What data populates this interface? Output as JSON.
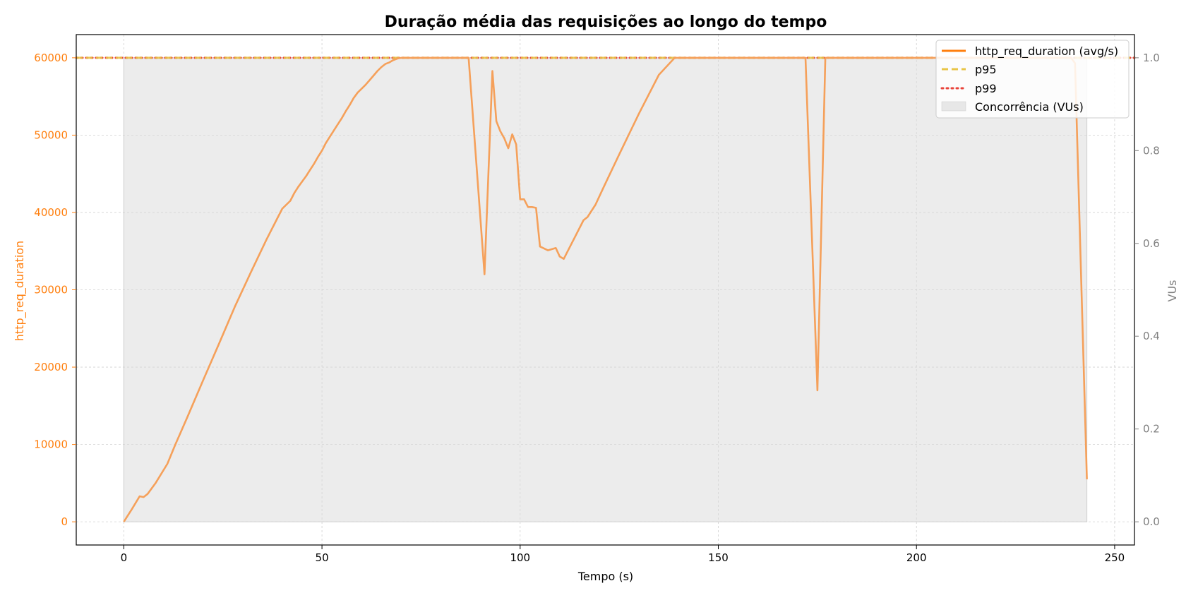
{
  "chart_data": {
    "type": "line",
    "title": "Duração média das requisições ao longo do tempo",
    "xlabel": "Tempo (s)",
    "ylabel": "http_req_duration",
    "y2label": "VUs",
    "xlim": [
      -12,
      255
    ],
    "ylim": [
      -3000,
      63000
    ],
    "y2lim": [
      -0.05,
      1.05
    ],
    "xticks": [
      0,
      50,
      100,
      150,
      200,
      250
    ],
    "yticks": [
      0,
      10000,
      20000,
      30000,
      40000,
      50000,
      60000
    ],
    "y2ticks": [
      "0.0",
      "0.2",
      "0.4",
      "0.6",
      "0.8",
      "1.0"
    ],
    "grid": true,
    "legend_position": "top-right",
    "colors": {
      "avg": "#f5a05a",
      "avg_legend": "#ff7f0e",
      "p95": "#e8c547",
      "p99": "#e8433a",
      "area": "#d9d9d9",
      "left_axis": "#ff7f0e",
      "right_axis": "#808080"
    },
    "series": [
      {
        "name": "http_req_duration (avg/s)",
        "kind": "line",
        "x": [
          0,
          2,
          4,
          5,
          6,
          8,
          11,
          13,
          16,
          20,
          24,
          28,
          32,
          36,
          37,
          38,
          39,
          40,
          42,
          43,
          44,
          45,
          46,
          47,
          48,
          49,
          50,
          51,
          52,
          53,
          54,
          55,
          56,
          57,
          58,
          59,
          60,
          61,
          62,
          63,
          64,
          65,
          66,
          67,
          68,
          69,
          70,
          71,
          72,
          73,
          74,
          75,
          76,
          77,
          80,
          84,
          87,
          91,
          93,
          94,
          95,
          96,
          97,
          98,
          99,
          100,
          101,
          102,
          103,
          104,
          105,
          107,
          109,
          110,
          111,
          112,
          114,
          116,
          117,
          119,
          121,
          125,
          130,
          135,
          139,
          145,
          150,
          155,
          160,
          165,
          170,
          172,
          175,
          177,
          180,
          190,
          200,
          210,
          220,
          230,
          237,
          239,
          240,
          243
        ],
        "y": [
          0,
          1600,
          3300,
          3200,
          3600,
          5000,
          7500,
          10000,
          13500,
          18300,
          23000,
          27800,
          32200,
          36500,
          37500,
          38500,
          39500,
          40500,
          41500,
          42500,
          43300,
          44000,
          44700,
          45500,
          46300,
          47200,
          48000,
          49000,
          49800,
          50600,
          51400,
          52200,
          53100,
          53900,
          54800,
          55500,
          56000,
          56500,
          57100,
          57700,
          58300,
          58800,
          59200,
          59400,
          59700,
          59900,
          60000,
          60000,
          60000,
          60000,
          60000,
          60000,
          60000,
          60000,
          60000,
          60000,
          60000,
          32000,
          58300,
          51800,
          50500,
          49600,
          48300,
          50100,
          48800,
          41700,
          41700,
          40700,
          40700,
          40600,
          35600,
          35100,
          35400,
          34300,
          34000,
          35000,
          37000,
          39000,
          39400,
          41000,
          43200,
          47500,
          52800,
          57800,
          60000,
          60000,
          60000,
          60000,
          60000,
          60000,
          60000,
          60000,
          17000,
          60000,
          60000,
          60000,
          60000,
          60000,
          60000,
          60000,
          60000,
          60000,
          59300,
          5500
        ]
      },
      {
        "name": "p95",
        "kind": "hline",
        "value": 60000
      },
      {
        "name": "p99",
        "kind": "hline",
        "value": 60000
      },
      {
        "name": "Concorrência (VUs)",
        "kind": "area",
        "axis": "right",
        "x": [
          0,
          243
        ],
        "value": 1.0
      }
    ]
  }
}
